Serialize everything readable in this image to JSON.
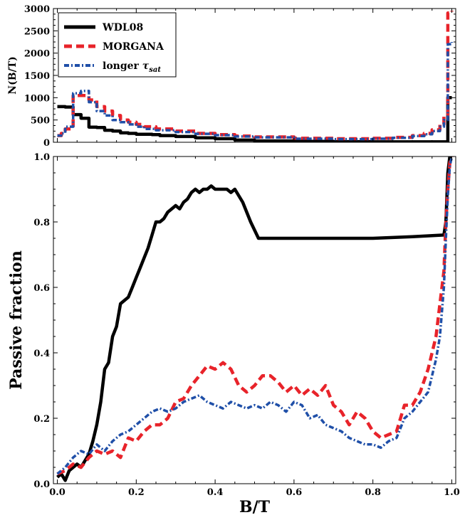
{
  "chart_data": [
    {
      "panel": "top",
      "type": "line",
      "xlabel": "",
      "ylabel": "N(B/T)",
      "xlim": [
        -0.01,
        1.01
      ],
      "ylim": [
        0,
        3000
      ],
      "xticks": [
        0.0,
        0.2,
        0.4,
        0.6,
        0.8,
        1.0
      ],
      "xtick_labels": [
        "",
        "",
        "",
        "",
        "",
        ""
      ],
      "yticks": [
        0,
        500,
        1000,
        1500,
        2000,
        2500,
        3000
      ],
      "ytick_labels": [
        "0",
        "500",
        "1000",
        "1500",
        "2000",
        "2500",
        "3000"
      ],
      "legend": {
        "placement": "top-left",
        "entries": [
          {
            "label": "WDL08",
            "series": "WDL08"
          },
          {
            "label": "MORGANA",
            "series": "MORGANA"
          },
          {
            "label_parts": [
              "longer ",
              "τ",
              "sat"
            ],
            "series": "longer_tsat"
          }
        ]
      },
      "series": [
        {
          "name": "WDL08",
          "key": "WDL08",
          "style": "solid",
          "color": "#000000",
          "step": true,
          "x": [
            0.0,
            0.02,
            0.04,
            0.06,
            0.08,
            0.1,
            0.12,
            0.14,
            0.16,
            0.18,
            0.2,
            0.22,
            0.24,
            0.26,
            0.3,
            0.35,
            0.4,
            0.45,
            0.5,
            0.6,
            0.7,
            0.8,
            0.9,
            0.97,
            0.98,
            0.99,
            1.0
          ],
          "y": [
            800,
            790,
            620,
            540,
            340,
            330,
            270,
            250,
            210,
            200,
            180,
            180,
            170,
            150,
            130,
            100,
            80,
            50,
            30,
            20,
            15,
            10,
            10,
            10,
            10,
            1000,
            1000
          ]
        },
        {
          "name": "MORGANA",
          "key": "MORGANA",
          "style": "dashed",
          "color": "#e8232a",
          "step": true,
          "x": [
            0.0,
            0.01,
            0.02,
            0.04,
            0.06,
            0.08,
            0.1,
            0.12,
            0.14,
            0.16,
            0.18,
            0.2,
            0.22,
            0.25,
            0.3,
            0.35,
            0.4,
            0.45,
            0.5,
            0.6,
            0.7,
            0.8,
            0.85,
            0.9,
            0.93,
            0.95,
            0.97,
            0.98,
            0.99,
            1.0
          ],
          "y": [
            150,
            200,
            300,
            1050,
            1050,
            950,
            800,
            700,
            600,
            500,
            450,
            400,
            350,
            300,
            250,
            200,
            170,
            140,
            120,
            90,
            80,
            90,
            110,
            150,
            200,
            280,
            400,
            600,
            2900,
            2950
          ]
        },
        {
          "name": "longer τsat",
          "key": "longer_tsat",
          "style": "dashdot",
          "color": "#1f4fa8",
          "step": true,
          "x": [
            0.0,
            0.01,
            0.02,
            0.04,
            0.06,
            0.08,
            0.1,
            0.12,
            0.14,
            0.16,
            0.18,
            0.2,
            0.22,
            0.25,
            0.3,
            0.35,
            0.4,
            0.45,
            0.5,
            0.6,
            0.7,
            0.8,
            0.85,
            0.9,
            0.93,
            0.95,
            0.97,
            0.98,
            0.99,
            1.0
          ],
          "y": [
            150,
            200,
            350,
            1100,
            1150,
            900,
            700,
            600,
            500,
            450,
            400,
            350,
            300,
            270,
            230,
            190,
            160,
            130,
            110,
            80,
            70,
            80,
            100,
            140,
            180,
            250,
            350,
            500,
            2200,
            2250
          ]
        }
      ]
    },
    {
      "panel": "bottom",
      "type": "line",
      "xlabel": "B/T",
      "ylabel": "Passive fraction",
      "xlim": [
        -0.01,
        1.01
      ],
      "ylim": [
        0,
        1.0
      ],
      "xticks": [
        0.0,
        0.2,
        0.4,
        0.6,
        0.8,
        1.0
      ],
      "xtick_labels": [
        "0.0",
        "0.2",
        "0.4",
        "0.6",
        "0.8",
        "1.0"
      ],
      "yticks": [
        0.0,
        0.2,
        0.4,
        0.6,
        0.8,
        1.0
      ],
      "ytick_labels": [
        "0.0",
        "0.2",
        "0.4",
        "0.6",
        "0.8",
        "1.0"
      ],
      "series": [
        {
          "name": "WDL08",
          "key": "WDL08",
          "style": "solid",
          "color": "#000000",
          "x": [
            0.0,
            0.01,
            0.02,
            0.03,
            0.04,
            0.05,
            0.06,
            0.07,
            0.08,
            0.09,
            0.1,
            0.11,
            0.12,
            0.13,
            0.14,
            0.15,
            0.16,
            0.17,
            0.18,
            0.19,
            0.2,
            0.21,
            0.22,
            0.23,
            0.24,
            0.25,
            0.26,
            0.27,
            0.28,
            0.29,
            0.3,
            0.31,
            0.32,
            0.33,
            0.34,
            0.35,
            0.36,
            0.37,
            0.38,
            0.39,
            0.4,
            0.41,
            0.42,
            0.43,
            0.44,
            0.45,
            0.47,
            0.49,
            0.51,
            0.6,
            0.7,
            0.8,
            0.9,
            0.98,
            0.985,
            0.99,
            0.995,
            1.0
          ],
          "y": [
            0.02,
            0.03,
            0.01,
            0.04,
            0.05,
            0.06,
            0.05,
            0.07,
            0.09,
            0.13,
            0.18,
            0.25,
            0.35,
            0.37,
            0.45,
            0.48,
            0.55,
            0.56,
            0.57,
            0.6,
            0.63,
            0.66,
            0.69,
            0.72,
            0.76,
            0.8,
            0.8,
            0.81,
            0.83,
            0.84,
            0.85,
            0.84,
            0.86,
            0.87,
            0.89,
            0.9,
            0.89,
            0.9,
            0.9,
            0.91,
            0.9,
            0.9,
            0.9,
            0.9,
            0.89,
            0.9,
            0.86,
            0.8,
            0.75,
            0.75,
            0.75,
            0.75,
            0.755,
            0.76,
            0.8,
            0.95,
            1.0,
            1.0
          ]
        },
        {
          "name": "MORGANA",
          "key": "MORGANA",
          "style": "dashed",
          "color": "#e8232a",
          "x": [
            0.0,
            0.02,
            0.04,
            0.06,
            0.08,
            0.1,
            0.12,
            0.14,
            0.16,
            0.18,
            0.2,
            0.22,
            0.24,
            0.26,
            0.28,
            0.3,
            0.32,
            0.34,
            0.36,
            0.38,
            0.4,
            0.42,
            0.44,
            0.46,
            0.48,
            0.5,
            0.52,
            0.54,
            0.56,
            0.58,
            0.6,
            0.62,
            0.64,
            0.66,
            0.68,
            0.7,
            0.72,
            0.74,
            0.76,
            0.78,
            0.8,
            0.82,
            0.84,
            0.86,
            0.88,
            0.9,
            0.92,
            0.94,
            0.96,
            0.97,
            0.98,
            0.985,
            0.99,
            0.995,
            1.0
          ],
          "y": [
            0.03,
            0.04,
            0.06,
            0.05,
            0.08,
            0.1,
            0.09,
            0.1,
            0.08,
            0.14,
            0.13,
            0.16,
            0.18,
            0.18,
            0.2,
            0.25,
            0.26,
            0.3,
            0.33,
            0.36,
            0.35,
            0.37,
            0.35,
            0.3,
            0.28,
            0.3,
            0.33,
            0.33,
            0.31,
            0.28,
            0.3,
            0.27,
            0.29,
            0.27,
            0.3,
            0.24,
            0.22,
            0.18,
            0.22,
            0.2,
            0.16,
            0.14,
            0.15,
            0.16,
            0.24,
            0.24,
            0.28,
            0.35,
            0.45,
            0.55,
            0.65,
            0.8,
            0.9,
            0.98,
            1.0
          ]
        },
        {
          "name": "longer τsat",
          "key": "longer_tsat",
          "style": "dashdot",
          "color": "#1f4fa8",
          "x": [
            0.0,
            0.02,
            0.04,
            0.06,
            0.08,
            0.1,
            0.12,
            0.14,
            0.16,
            0.18,
            0.2,
            0.22,
            0.24,
            0.26,
            0.28,
            0.3,
            0.32,
            0.34,
            0.36,
            0.38,
            0.4,
            0.42,
            0.44,
            0.46,
            0.48,
            0.5,
            0.52,
            0.54,
            0.56,
            0.58,
            0.6,
            0.62,
            0.64,
            0.66,
            0.68,
            0.7,
            0.72,
            0.74,
            0.76,
            0.78,
            0.8,
            0.82,
            0.84,
            0.86,
            0.88,
            0.9,
            0.92,
            0.94,
            0.96,
            0.97,
            0.98,
            0.985,
            0.99,
            0.995,
            1.0
          ],
          "y": [
            0.03,
            0.05,
            0.08,
            0.1,
            0.09,
            0.12,
            0.1,
            0.13,
            0.15,
            0.16,
            0.18,
            0.2,
            0.22,
            0.23,
            0.22,
            0.23,
            0.25,
            0.26,
            0.27,
            0.25,
            0.24,
            0.23,
            0.25,
            0.24,
            0.23,
            0.24,
            0.23,
            0.25,
            0.24,
            0.22,
            0.25,
            0.24,
            0.2,
            0.21,
            0.18,
            0.17,
            0.16,
            0.14,
            0.13,
            0.12,
            0.12,
            0.11,
            0.13,
            0.14,
            0.2,
            0.22,
            0.25,
            0.28,
            0.38,
            0.45,
            0.6,
            0.75,
            0.88,
            0.97,
            1.0
          ]
        }
      ]
    }
  ]
}
